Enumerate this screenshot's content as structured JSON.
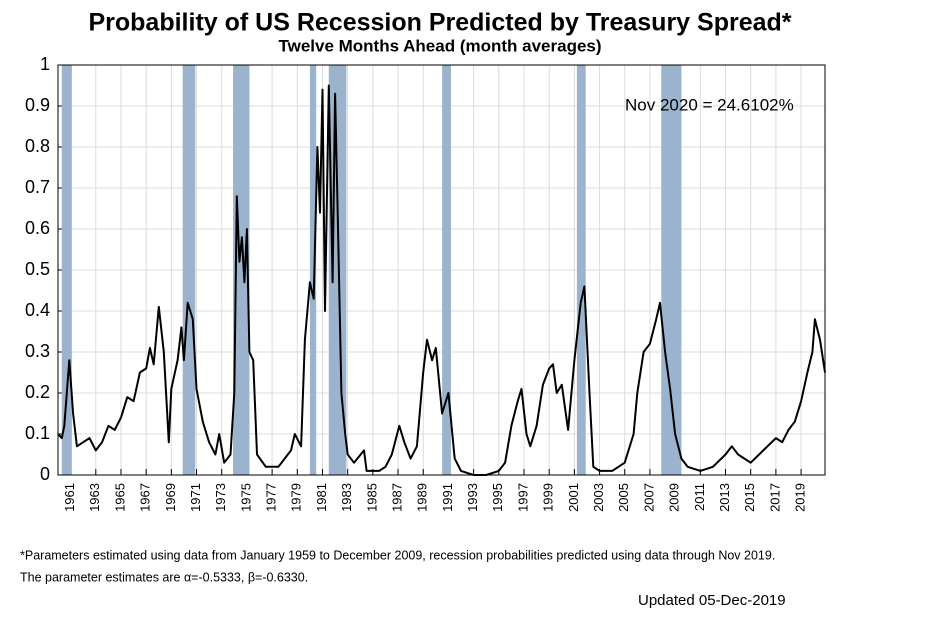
{
  "chart_data": {
    "type": "line",
    "title": "Probability of US Recession Predicted by Treasury Spread*",
    "subtitle": "Twelve Months Ahead (month averages)",
    "annotation": "Nov 2020 = 24.6102%",
    "footnotes": [
      "*Parameters estimated using data from January 1959 to December 2009, recession probabilities predicted using data through Nov 2019.",
      "The parameter estimates are α=-0.5333, β=-0.6330."
    ],
    "updated": "Updated 05-Dec-2019",
    "x": [
      1960.0,
      1960.3,
      1960.5,
      1960.9,
      1961.2,
      1961.5,
      1962,
      1962.5,
      1963,
      1963.5,
      1964,
      1964.5,
      1965,
      1965.5,
      1966,
      1966.5,
      1967,
      1967.3,
      1967.6,
      1968,
      1968.4,
      1968.8,
      1969,
      1969.5,
      1969.8,
      1970,
      1970.3,
      1970.7,
      1971,
      1971.5,
      1972,
      1972.5,
      1972.8,
      1973.2,
      1973.7,
      1974,
      1974.2,
      1974.4,
      1974.6,
      1974.8,
      1975,
      1975.2,
      1975.5,
      1975.8,
      1976.5,
      1977.5,
      1978.5,
      1978.8,
      1979.3,
      1979.6,
      1980,
      1980.3,
      1980.6,
      1980.8,
      1981,
      1981.2,
      1981.5,
      1981.8,
      1982,
      1982.2,
      1982.5,
      1982.8,
      1983,
      1983.5,
      1984.3,
      1984.5,
      1985.5,
      1986,
      1986.5,
      1987.1,
      1987.5,
      1988,
      1988.5,
      1989,
      1989.3,
      1989.7,
      1990,
      1990.5,
      1991,
      1991.5,
      1992,
      1993,
      1994,
      1995,
      1995.5,
      1996,
      1996.5,
      1996.8,
      1997.2,
      1997.5,
      1998,
      1998.5,
      1999,
      1999.3,
      1999.6,
      2000,
      2000.5,
      2001,
      2001.5,
      2001.8,
      2002.2,
      2002.5,
      2003,
      2004,
      2005,
      2005.7,
      2006,
      2006.5,
      2007,
      2007.5,
      2007.8,
      2008.2,
      2008.6,
      2009,
      2009.5,
      2010,
      2011,
      2012,
      2013,
      2013.5,
      2014,
      2015,
      2016,
      2017,
      2017.5,
      2018,
      2018.5,
      2019,
      2019.5,
      2019.9,
      2020.1,
      2020.5,
      2020.9
    ],
    "series": [
      {
        "name": "Probability",
        "color": "#000000",
        "values": [
          0.1,
          0.09,
          0.12,
          0.28,
          0.15,
          0.07,
          0.08,
          0.09,
          0.06,
          0.08,
          0.12,
          0.11,
          0.14,
          0.19,
          0.18,
          0.25,
          0.26,
          0.31,
          0.27,
          0.41,
          0.3,
          0.08,
          0.21,
          0.28,
          0.36,
          0.28,
          0.42,
          0.38,
          0.21,
          0.13,
          0.08,
          0.05,
          0.1,
          0.03,
          0.05,
          0.2,
          0.68,
          0.52,
          0.58,
          0.47,
          0.6,
          0.3,
          0.28,
          0.05,
          0.02,
          0.02,
          0.06,
          0.1,
          0.07,
          0.33,
          0.47,
          0.43,
          0.8,
          0.64,
          0.94,
          0.4,
          0.95,
          0.47,
          0.93,
          0.65,
          0.2,
          0.1,
          0.05,
          0.03,
          0.06,
          0.01,
          0.01,
          0.02,
          0.05,
          0.12,
          0.08,
          0.04,
          0.07,
          0.25,
          0.33,
          0.28,
          0.31,
          0.15,
          0.2,
          0.04,
          0.01,
          0.0,
          0.0,
          0.01,
          0.03,
          0.12,
          0.18,
          0.21,
          0.1,
          0.07,
          0.12,
          0.22,
          0.26,
          0.27,
          0.2,
          0.22,
          0.11,
          0.28,
          0.42,
          0.46,
          0.2,
          0.02,
          0.01,
          0.01,
          0.03,
          0.1,
          0.2,
          0.3,
          0.32,
          0.38,
          0.42,
          0.3,
          0.21,
          0.1,
          0.04,
          0.02,
          0.01,
          0.02,
          0.05,
          0.07,
          0.05,
          0.03,
          0.06,
          0.09,
          0.08,
          0.11,
          0.13,
          0.18,
          0.25,
          0.3,
          0.38,
          0.33,
          0.25
        ]
      }
    ],
    "recessions": [
      [
        1960.3,
        1961.1
      ],
      [
        1969.9,
        1970.9
      ],
      [
        1973.9,
        1975.2
      ],
      [
        1980.0,
        1980.5
      ],
      [
        1981.5,
        1982.9
      ],
      [
        1990.5,
        1991.2
      ],
      [
        2001.2,
        2001.9
      ],
      [
        2007.9,
        2009.5
      ]
    ],
    "recession_color": "#9bb3cd",
    "xlim": [
      1960,
      2020.9
    ],
    "ylim": [
      0,
      1
    ],
    "xticks": [
      1961,
      1963,
      1965,
      1967,
      1969,
      1971,
      1973,
      1975,
      1977,
      1979,
      1981,
      1983,
      1985,
      1987,
      1989,
      1991,
      1993,
      1995,
      1997,
      1999,
      2001,
      2003,
      2005,
      2007,
      2009,
      2011,
      2013,
      2015,
      2017,
      2019
    ],
    "yticks": [
      0,
      0.1,
      0.2,
      0.3,
      0.4,
      0.5,
      0.6,
      0.7,
      0.8,
      0.9,
      1
    ],
    "grid": true
  }
}
